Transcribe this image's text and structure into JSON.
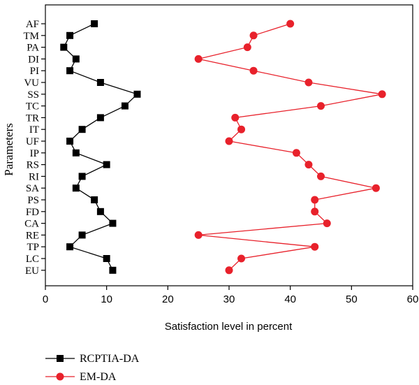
{
  "chart_data": {
    "type": "line",
    "orientation": "horizontal",
    "categories": [
      "AF",
      "TM",
      "PA",
      "DI",
      "PI",
      "VU",
      "SS",
      "TC",
      "TR",
      "IT",
      "UF",
      "IP",
      "RS",
      "RI",
      "SA",
      "PS",
      "FD",
      "CA",
      "RE",
      "TP",
      "LC",
      "EU"
    ],
    "series": [
      {
        "name": "RCPTIA-DA",
        "color": "#000000",
        "marker": "square",
        "values": [
          8,
          4,
          3,
          5,
          4,
          9,
          15,
          13,
          9,
          6,
          4,
          5,
          10,
          6,
          5,
          8,
          9,
          11,
          6,
          4,
          10,
          11
        ]
      },
      {
        "name": "EM-DA",
        "color": "#e8212b",
        "marker": "circle",
        "values": [
          40,
          34,
          33,
          25,
          34,
          43,
          55,
          45,
          31,
          32,
          30,
          41,
          43,
          45,
          54,
          44,
          44,
          46,
          25,
          44,
          32,
          30
        ]
      }
    ],
    "xlabel": "Satisfaction level in percent",
    "ylabel": "Parameters",
    "xlim": [
      0,
      60
    ],
    "xticks": [
      0,
      10,
      20,
      30,
      40,
      50,
      60
    ],
    "grid": false,
    "legend_position": "bottom-left"
  }
}
